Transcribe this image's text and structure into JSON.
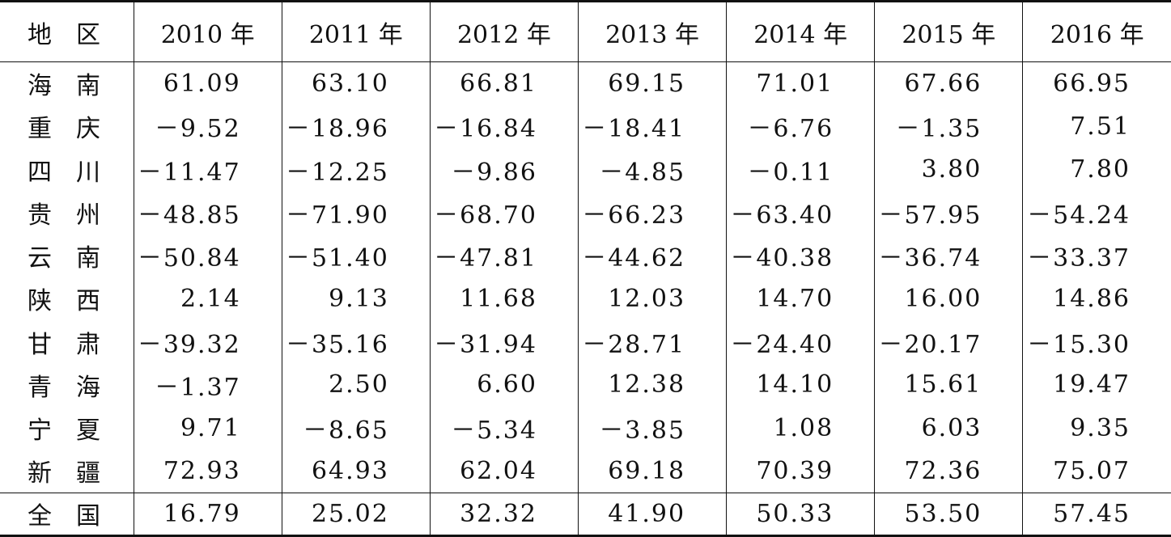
{
  "table": {
    "headers": [
      "地区",
      "2010 年",
      "2011 年",
      "2012 年",
      "2013 年",
      "2014 年",
      "2015 年",
      "2016 年"
    ],
    "rows": [
      {
        "region": "海南",
        "values": [
          "61.09",
          "63.10",
          "66.81",
          "69.15",
          "71.01",
          "67.66",
          "66.95"
        ]
      },
      {
        "region": "重庆",
        "values": [
          "－9.52",
          "－18.96",
          "－16.84",
          "－18.41",
          "－6.76",
          "－1.35",
          "7.51"
        ]
      },
      {
        "region": "四川",
        "values": [
          "－11.47",
          "－12.25",
          "－9.86",
          "－4.85",
          "－0.11",
          "3.80",
          "7.80"
        ]
      },
      {
        "region": "贵州",
        "values": [
          "－48.85",
          "－71.90",
          "－68.70",
          "－66.23",
          "－63.40",
          "－57.95",
          "－54.24"
        ]
      },
      {
        "region": "云南",
        "values": [
          "－50.84",
          "－51.40",
          "－47.81",
          "－44.62",
          "－40.38",
          "－36.74",
          "－33.37"
        ]
      },
      {
        "region": "陕西",
        "values": [
          "2.14",
          "9.13",
          "11.68",
          "12.03",
          "14.70",
          "16.00",
          "14.86"
        ]
      },
      {
        "region": "甘肃",
        "values": [
          "－39.32",
          "－35.16",
          "－31.94",
          "－28.71",
          "－24.40",
          "－20.17",
          "－15.30"
        ]
      },
      {
        "region": "青海",
        "values": [
          "－1.37",
          "2.50",
          "6.60",
          "12.38",
          "14.10",
          "15.61",
          "19.47"
        ]
      },
      {
        "region": "宁夏",
        "values": [
          "9.71",
          "－8.65",
          "－5.34",
          "－3.85",
          "1.08",
          "6.03",
          "9.35"
        ]
      },
      {
        "region": "新疆",
        "values": [
          "72.93",
          "64.93",
          "62.04",
          "69.18",
          "70.39",
          "72.36",
          "75.07"
        ]
      }
    ],
    "total": {
      "region": "全国",
      "values": [
        "16.79",
        "25.02",
        "32.32",
        "41.90",
        "50.33",
        "53.50",
        "57.45"
      ]
    }
  }
}
